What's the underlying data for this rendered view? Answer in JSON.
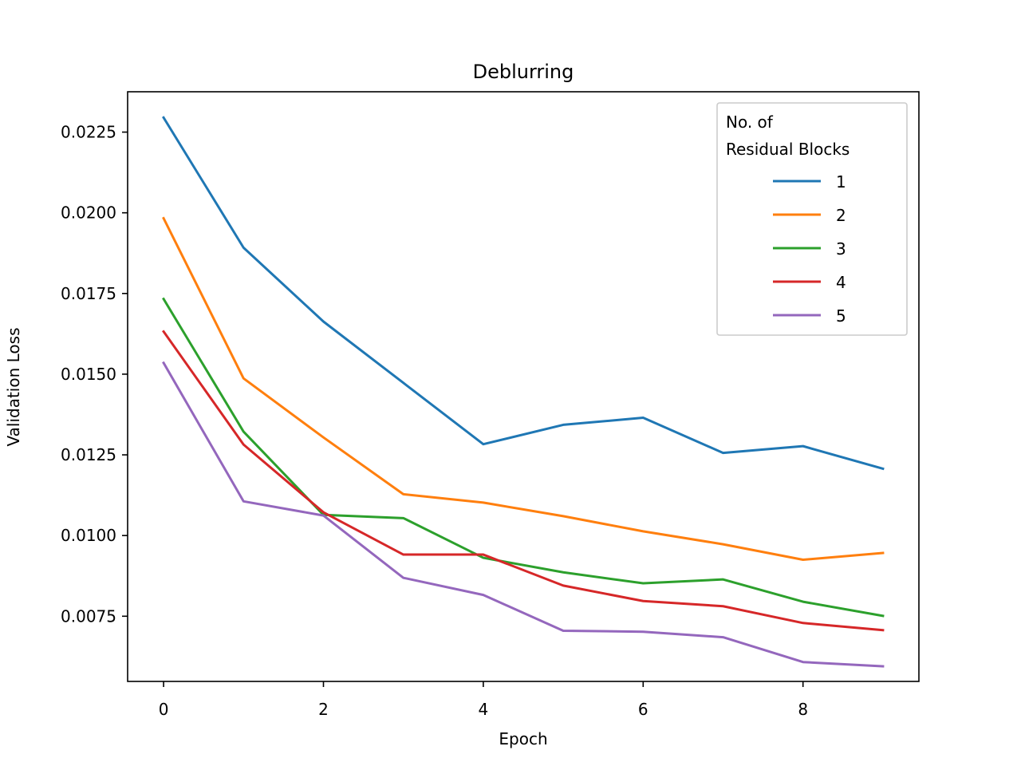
{
  "chart_data": {
    "type": "line",
    "title": "Deblurring",
    "xlabel": "Epoch",
    "ylabel": "Validation Loss",
    "xlim": [
      -0.45,
      9.45
    ],
    "ylim": [
      0.00548,
      0.02375
    ],
    "xticks": [
      0,
      2,
      4,
      6,
      8
    ],
    "xtick_labels": [
      "0",
      "2",
      "4",
      "6",
      "8"
    ],
    "yticks": [
      0.0075,
      0.01,
      0.0125,
      0.015,
      0.0175,
      0.02,
      0.0225
    ],
    "ytick_labels": [
      "0.0075",
      "0.0100",
      "0.0125",
      "0.0150",
      "0.0175",
      "0.0200",
      "0.0225"
    ],
    "grid": false,
    "legend": {
      "title": "No. of\nResidual Blocks",
      "title_lines": [
        "No. of",
        "Residual Blocks"
      ],
      "location": "top-right"
    },
    "x": [
      0,
      1,
      2,
      3,
      4,
      5,
      6,
      7,
      8,
      9
    ],
    "series": [
      {
        "name": "1",
        "color": "#1f77b4",
        "values": [
          0.02295,
          0.01892,
          0.01663,
          0.01473,
          0.01283,
          0.01343,
          0.01365,
          0.01256,
          0.01277,
          0.01207
        ]
      },
      {
        "name": "2",
        "color": "#ff7f0e",
        "values": [
          0.01983,
          0.01487,
          0.01304,
          0.01128,
          0.01102,
          0.0106,
          0.01013,
          0.00973,
          0.00925,
          0.00946
        ]
      },
      {
        "name": "3",
        "color": "#2ca02c",
        "values": [
          0.01733,
          0.01322,
          0.01064,
          0.01054,
          0.00931,
          0.00886,
          0.00852,
          0.00864,
          0.00795,
          0.00751
        ]
      },
      {
        "name": "4",
        "color": "#d62728",
        "values": [
          0.01632,
          0.01282,
          0.01072,
          0.00941,
          0.00941,
          0.00845,
          0.00797,
          0.00781,
          0.00729,
          0.00707
        ]
      },
      {
        "name": "5",
        "color": "#9467bd",
        "values": [
          0.01535,
          0.01106,
          0.01062,
          0.00869,
          0.00816,
          0.00705,
          0.00702,
          0.00685,
          0.00608,
          0.00595
        ]
      }
    ]
  }
}
